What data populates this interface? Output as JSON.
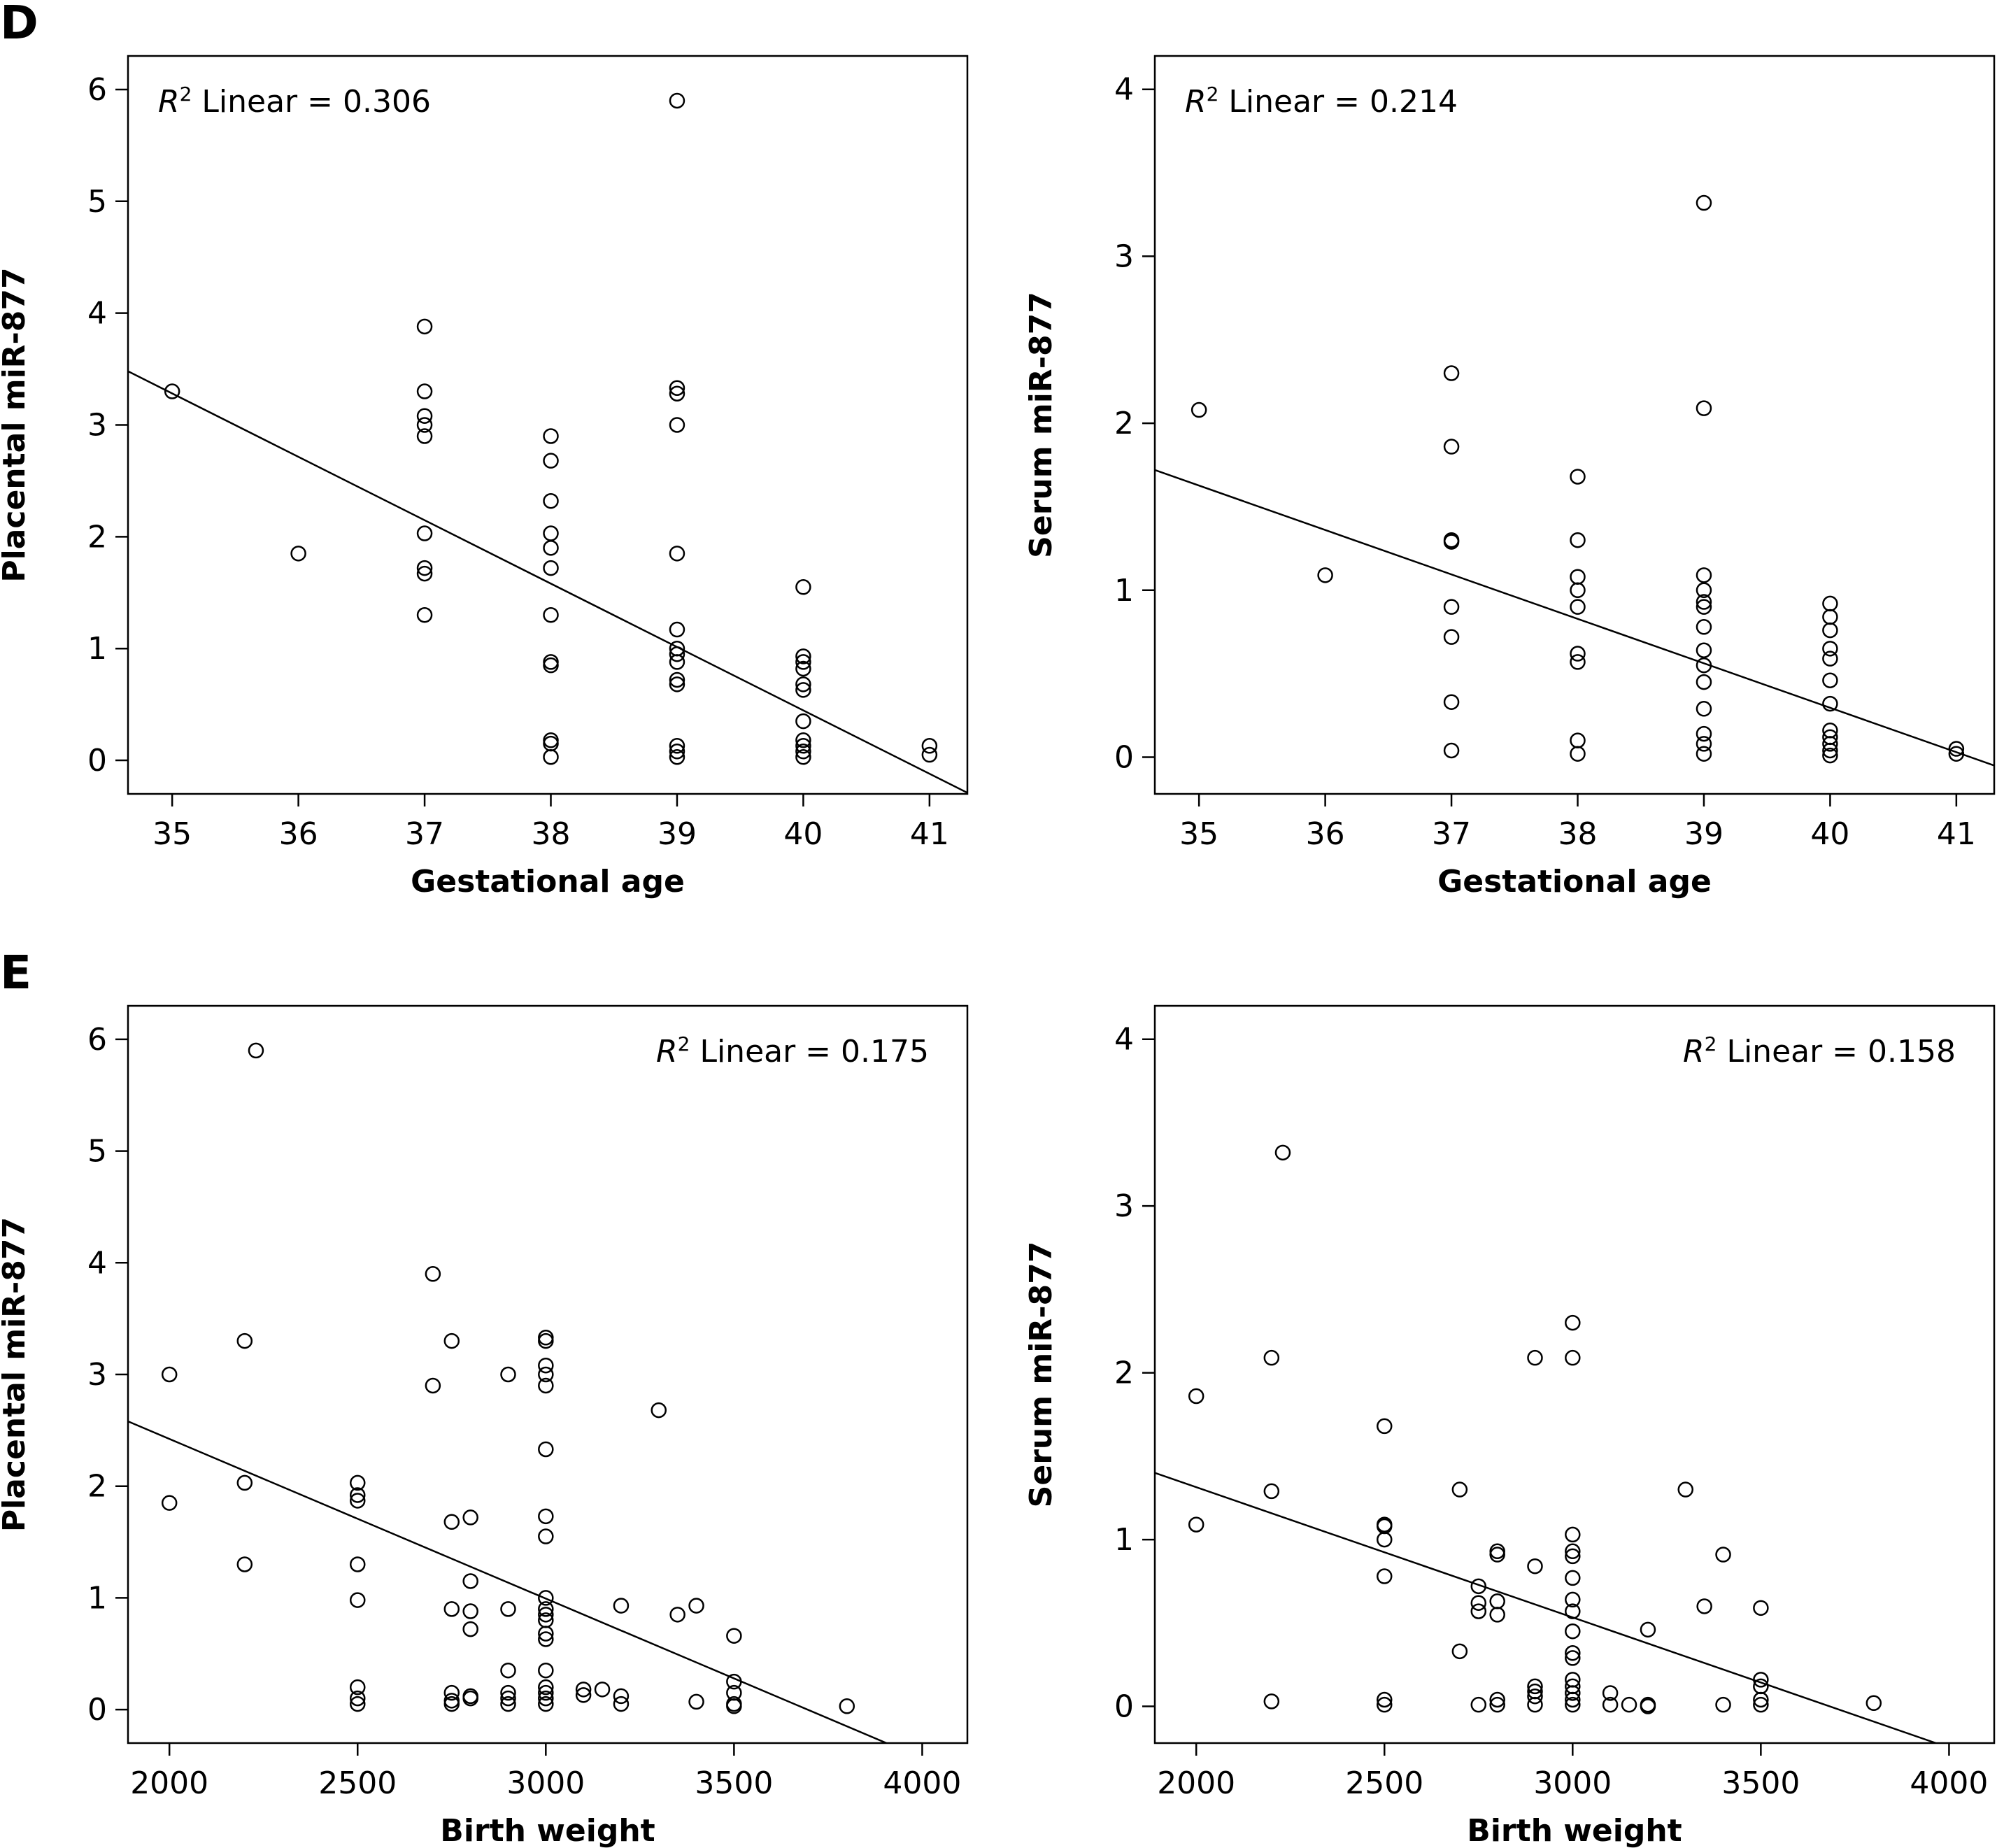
{
  "panels": [
    {
      "letter": "D"
    },
    {
      "letter": "E"
    }
  ],
  "chart_data": [
    {
      "type": "scatter",
      "panel": "D",
      "xlabel": "Gestational age",
      "ylabel": "Placental miR-877",
      "annotation_r": "R",
      "annotation_sup": "2",
      "annotation_text": " Linear = 0.306",
      "xlim": [
        34.65,
        41.3
      ],
      "ylim": [
        -0.3,
        6.3
      ],
      "xticks": [
        35,
        36,
        37,
        38,
        39,
        40,
        41
      ],
      "yticks": [
        0,
        1,
        2,
        3,
        4,
        5,
        6
      ],
      "fit_line": {
        "x": [
          34.65,
          41.3
        ],
        "y": [
          3.48,
          -0.29
        ]
      },
      "points": [
        [
          35,
          3.3
        ],
        [
          36,
          1.85
        ],
        [
          37,
          3.88
        ],
        [
          37,
          3.3
        ],
        [
          37,
          3.08
        ],
        [
          37,
          3.0
        ],
        [
          37,
          2.9
        ],
        [
          37,
          2.03
        ],
        [
          37,
          1.72
        ],
        [
          37,
          1.67
        ],
        [
          37,
          1.3
        ],
        [
          38,
          2.9
        ],
        [
          38,
          2.68
        ],
        [
          38,
          2.32
        ],
        [
          38,
          2.03
        ],
        [
          38,
          1.9
        ],
        [
          38,
          1.72
        ],
        [
          38,
          1.3
        ],
        [
          38,
          0.88
        ],
        [
          38,
          0.85
        ],
        [
          38,
          0.18
        ],
        [
          38,
          0.15
        ],
        [
          38,
          0.03
        ],
        [
          39,
          5.9
        ],
        [
          39,
          3.33
        ],
        [
          39,
          3.28
        ],
        [
          39,
          3.0
        ],
        [
          39,
          1.85
        ],
        [
          39,
          1.17
        ],
        [
          39,
          1.0
        ],
        [
          39,
          0.95
        ],
        [
          39,
          0.88
        ],
        [
          39,
          0.72
        ],
        [
          39,
          0.68
        ],
        [
          39,
          0.13
        ],
        [
          39,
          0.08
        ],
        [
          39,
          0.03
        ],
        [
          40,
          1.55
        ],
        [
          40,
          0.93
        ],
        [
          40,
          0.88
        ],
        [
          40,
          0.82
        ],
        [
          40,
          0.68
        ],
        [
          40,
          0.63
        ],
        [
          40,
          0.35
        ],
        [
          40,
          0.18
        ],
        [
          40,
          0.13
        ],
        [
          40,
          0.08
        ],
        [
          40,
          0.03
        ],
        [
          41,
          0.13
        ],
        [
          41,
          0.05
        ]
      ]
    },
    {
      "type": "scatter",
      "panel": "D",
      "xlabel": "Gestational age",
      "ylabel": "Serum miR-877",
      "annotation_r": "R",
      "annotation_sup": "2",
      "annotation_text": " Linear = 0.214",
      "xlim": [
        34.65,
        41.3
      ],
      "ylim": [
        -0.22,
        4.2
      ],
      "xticks": [
        35,
        36,
        37,
        38,
        39,
        40,
        41
      ],
      "yticks": [
        0,
        1,
        2,
        3,
        4
      ],
      "fit_line": {
        "x": [
          34.65,
          41.3
        ],
        "y": [
          1.72,
          -0.05
        ]
      },
      "points": [
        [
          35,
          2.08
        ],
        [
          36,
          1.09
        ],
        [
          37,
          2.3
        ],
        [
          37,
          1.86
        ],
        [
          37,
          1.3
        ],
        [
          37,
          1.29
        ],
        [
          37,
          0.9
        ],
        [
          37,
          0.72
        ],
        [
          37,
          0.33
        ],
        [
          37,
          0.04
        ],
        [
          38,
          1.68
        ],
        [
          38,
          1.3
        ],
        [
          38,
          1.08
        ],
        [
          38,
          1.0
        ],
        [
          38,
          0.9
        ],
        [
          38,
          0.62
        ],
        [
          38,
          0.57
        ],
        [
          38,
          0.1
        ],
        [
          38,
          0.02
        ],
        [
          39,
          3.32
        ],
        [
          39,
          2.09
        ],
        [
          39,
          1.09
        ],
        [
          39,
          1.0
        ],
        [
          39,
          0.93
        ],
        [
          39,
          0.9
        ],
        [
          39,
          0.78
        ],
        [
          39,
          0.64
        ],
        [
          39,
          0.55
        ],
        [
          39,
          0.45
        ],
        [
          39,
          0.29
        ],
        [
          39,
          0.14
        ],
        [
          39,
          0.08
        ],
        [
          39,
          0.02
        ],
        [
          40,
          0.92
        ],
        [
          40,
          0.84
        ],
        [
          40,
          0.76
        ],
        [
          40,
          0.65
        ],
        [
          40,
          0.59
        ],
        [
          40,
          0.46
        ],
        [
          40,
          0.32
        ],
        [
          40,
          0.16
        ],
        [
          40,
          0.12
        ],
        [
          40,
          0.08
        ],
        [
          40,
          0.04
        ],
        [
          40,
          0.01
        ],
        [
          41,
          0.05
        ],
        [
          41,
          0.02
        ]
      ]
    },
    {
      "type": "scatter",
      "panel": "E",
      "xlabel": "Birth weight",
      "ylabel": "Placental miR-877",
      "annotation_r": "R",
      "annotation_sup": "2",
      "annotation_text": " Linear = 0.175",
      "xlim": [
        1890,
        4120
      ],
      "ylim": [
        -0.3,
        6.3
      ],
      "xticks": [
        2000,
        2500,
        3000,
        3500,
        4000
      ],
      "yticks": [
        0,
        1,
        2,
        3,
        4,
        5,
        6
      ],
      "fit_line": {
        "x": [
          1890,
          3905
        ],
        "y": [
          2.58,
          -0.3
        ]
      },
      "points": [
        [
          2000,
          3.0
        ],
        [
          2000,
          1.85
        ],
        [
          2200,
          3.3
        ],
        [
          2200,
          2.03
        ],
        [
          2200,
          1.3
        ],
        [
          2230,
          5.9
        ],
        [
          2500,
          2.03
        ],
        [
          2500,
          1.92
        ],
        [
          2500,
          1.87
        ],
        [
          2500,
          1.3
        ],
        [
          2500,
          0.98
        ],
        [
          2500,
          0.2
        ],
        [
          2500,
          0.1
        ],
        [
          2500,
          0.05
        ],
        [
          2700,
          3.9
        ],
        [
          2700,
          2.9
        ],
        [
          2750,
          3.3
        ],
        [
          2750,
          1.68
        ],
        [
          2750,
          0.9
        ],
        [
          2750,
          0.15
        ],
        [
          2750,
          0.08
        ],
        [
          2750,
          0.05
        ],
        [
          2800,
          1.72
        ],
        [
          2800,
          1.15
        ],
        [
          2800,
          0.88
        ],
        [
          2800,
          0.72
        ],
        [
          2800,
          0.12
        ],
        [
          2800,
          0.1
        ],
        [
          2900,
          3.0
        ],
        [
          2900,
          0.9
        ],
        [
          2900,
          0.35
        ],
        [
          2900,
          0.15
        ],
        [
          2900,
          0.1
        ],
        [
          2900,
          0.05
        ],
        [
          3000,
          3.33
        ],
        [
          3000,
          3.3
        ],
        [
          3000,
          3.08
        ],
        [
          3000,
          3.0
        ],
        [
          3000,
          2.9
        ],
        [
          3000,
          2.33
        ],
        [
          3000,
          1.73
        ],
        [
          3000,
          1.55
        ],
        [
          3000,
          1.0
        ],
        [
          3000,
          0.9
        ],
        [
          3000,
          0.85
        ],
        [
          3000,
          0.8
        ],
        [
          3000,
          0.68
        ],
        [
          3000,
          0.63
        ],
        [
          3000,
          0.35
        ],
        [
          3000,
          0.2
        ],
        [
          3000,
          0.15
        ],
        [
          3000,
          0.1
        ],
        [
          3000,
          0.05
        ],
        [
          3100,
          0.18
        ],
        [
          3100,
          0.13
        ],
        [
          3150,
          0.18
        ],
        [
          3200,
          0.93
        ],
        [
          3200,
          0.12
        ],
        [
          3200,
          0.05
        ],
        [
          3300,
          2.68
        ],
        [
          3350,
          0.85
        ],
        [
          3400,
          0.93
        ],
        [
          3400,
          0.07
        ],
        [
          3500,
          0.66
        ],
        [
          3500,
          0.25
        ],
        [
          3500,
          0.15
        ],
        [
          3500,
          0.05
        ],
        [
          3500,
          0.03
        ],
        [
          3800,
          0.03
        ]
      ]
    },
    {
      "type": "scatter",
      "panel": "E",
      "xlabel": "Birth weight",
      "ylabel": "Serum miR-877",
      "annotation_r": "R",
      "annotation_sup": "2",
      "annotation_text": " Linear = 0.158",
      "xlim": [
        1890,
        4120
      ],
      "ylim": [
        -0.22,
        4.2
      ],
      "xticks": [
        2000,
        2500,
        3000,
        3500,
        4000
      ],
      "yticks": [
        0,
        1,
        2,
        3,
        4
      ],
      "fit_line": {
        "x": [
          1890,
          3965
        ],
        "y": [
          1.4,
          -0.22
        ]
      },
      "points": [
        [
          2000,
          1.86
        ],
        [
          2000,
          1.09
        ],
        [
          2200,
          2.09
        ],
        [
          2200,
          1.29
        ],
        [
          2200,
          0.03
        ],
        [
          2230,
          3.32
        ],
        [
          2500,
          1.68
        ],
        [
          2500,
          1.09
        ],
        [
          2500,
          1.08
        ],
        [
          2500,
          1.0
        ],
        [
          2500,
          0.78
        ],
        [
          2500,
          0.04
        ],
        [
          2500,
          0.01
        ],
        [
          2700,
          1.3
        ],
        [
          2700,
          0.33
        ],
        [
          2750,
          0.72
        ],
        [
          2750,
          0.62
        ],
        [
          2750,
          0.57
        ],
        [
          2750,
          0.01
        ],
        [
          2800,
          0.93
        ],
        [
          2800,
          0.91
        ],
        [
          2800,
          0.63
        ],
        [
          2800,
          0.55
        ],
        [
          2800,
          0.04
        ],
        [
          2800,
          0.01
        ],
        [
          2900,
          2.09
        ],
        [
          2900,
          0.84
        ],
        [
          2900,
          0.12
        ],
        [
          2900,
          0.09
        ],
        [
          2900,
          0.06
        ],
        [
          2900,
          0.01
        ],
        [
          3000,
          2.3
        ],
        [
          3000,
          2.09
        ],
        [
          3000,
          1.03
        ],
        [
          3000,
          0.93
        ],
        [
          3000,
          0.9
        ],
        [
          3000,
          0.77
        ],
        [
          3000,
          0.64
        ],
        [
          3000,
          0.57
        ],
        [
          3000,
          0.45
        ],
        [
          3000,
          0.32
        ],
        [
          3000,
          0.29
        ],
        [
          3000,
          0.16
        ],
        [
          3000,
          0.12
        ],
        [
          3000,
          0.08
        ],
        [
          3000,
          0.04
        ],
        [
          3000,
          0.01
        ],
        [
          3100,
          0.08
        ],
        [
          3100,
          0.01
        ],
        [
          3150,
          0.01
        ],
        [
          3200,
          0.46
        ],
        [
          3200,
          0.01
        ],
        [
          3200,
          0.0
        ],
        [
          3300,
          1.3
        ],
        [
          3350,
          0.6
        ],
        [
          3400,
          0.91
        ],
        [
          3400,
          0.01
        ],
        [
          3500,
          0.59
        ],
        [
          3500,
          0.16
        ],
        [
          3500,
          0.12
        ],
        [
          3500,
          0.04
        ],
        [
          3500,
          0.01
        ],
        [
          3800,
          0.02
        ]
      ]
    }
  ]
}
